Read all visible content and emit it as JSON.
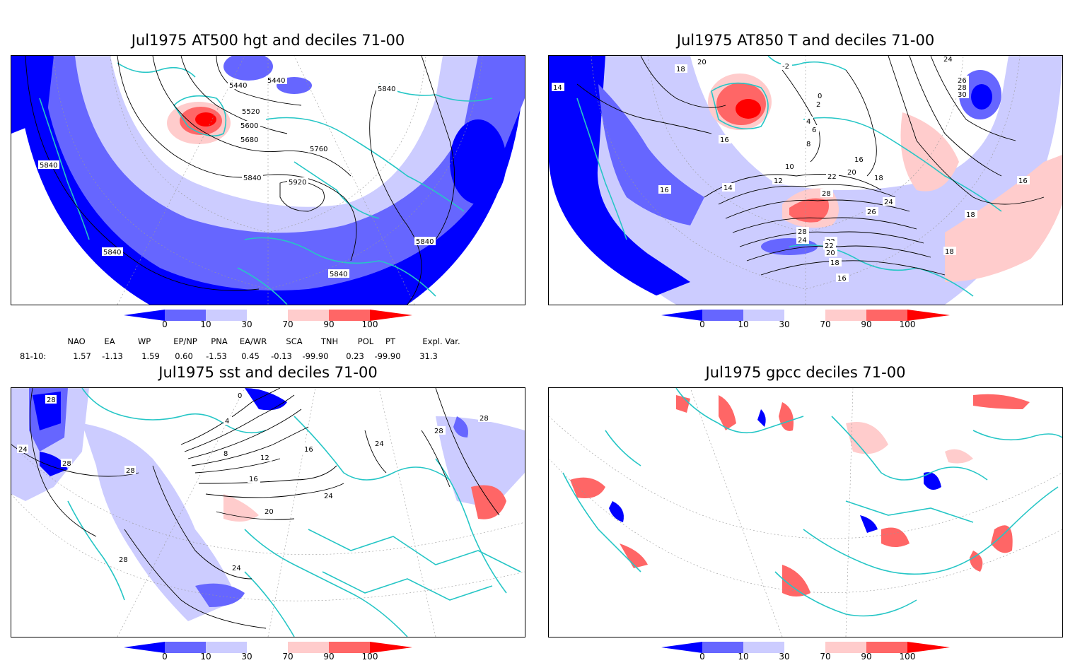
{
  "panels": [
    {
      "title": "Jul1975 AT500 hgt and deciles 71-00",
      "contour_labels": [
        "5440",
        "5440",
        "5520",
        "5600",
        "5680",
        "5760",
        "5840",
        "5840",
        "5920",
        "5840",
        "5840",
        "5840",
        "5840"
      ]
    },
    {
      "title": "Jul1975 AT850 T and deciles 71-00",
      "contour_labels": [
        "18",
        "20",
        "14",
        "-2",
        "0",
        "2",
        "4",
        "6",
        "8",
        "10",
        "12",
        "14",
        "16",
        "16",
        "18",
        "20",
        "22",
        "22",
        "24",
        "26",
        "28",
        "28",
        "24",
        "22",
        "20",
        "18",
        "16",
        "18",
        "16",
        "24",
        "26",
        "28",
        "30",
        "18",
        "16"
      ]
    },
    {
      "title": "Jul1975 sst and deciles 71-00",
      "contour_labels": [
        "28",
        "24",
        "28",
        "28",
        "0",
        "4",
        "8",
        "12",
        "16",
        "16",
        "20",
        "24",
        "24",
        "28",
        "28",
        "24",
        "28"
      ]
    },
    {
      "title": "Jul1975 gpcc deciles 71-00",
      "contour_labels": []
    }
  ],
  "legend": {
    "ticks": [
      "0",
      "10",
      "30",
      "70",
      "90",
      "100"
    ],
    "colors": [
      "#0000ff",
      "#6666ff",
      "#ccccff",
      "#ffffff",
      "#ffcccc",
      "#ff6666",
      "#ff0000"
    ]
  },
  "indices": {
    "headers": [
      "NAO",
      "EA",
      "WP",
      "EP/NP",
      "PNA",
      "EA/WR",
      "SCA",
      "TNH",
      "POL",
      "PT",
      "Expl. Var."
    ],
    "row_label": "81-10:",
    "values": [
      "1.57",
      "-1.13",
      "1.59",
      "0.60",
      "-1.53",
      "0.45",
      "-0.13",
      "-99.90",
      "0.23",
      "-99.90",
      "31.3"
    ]
  }
}
